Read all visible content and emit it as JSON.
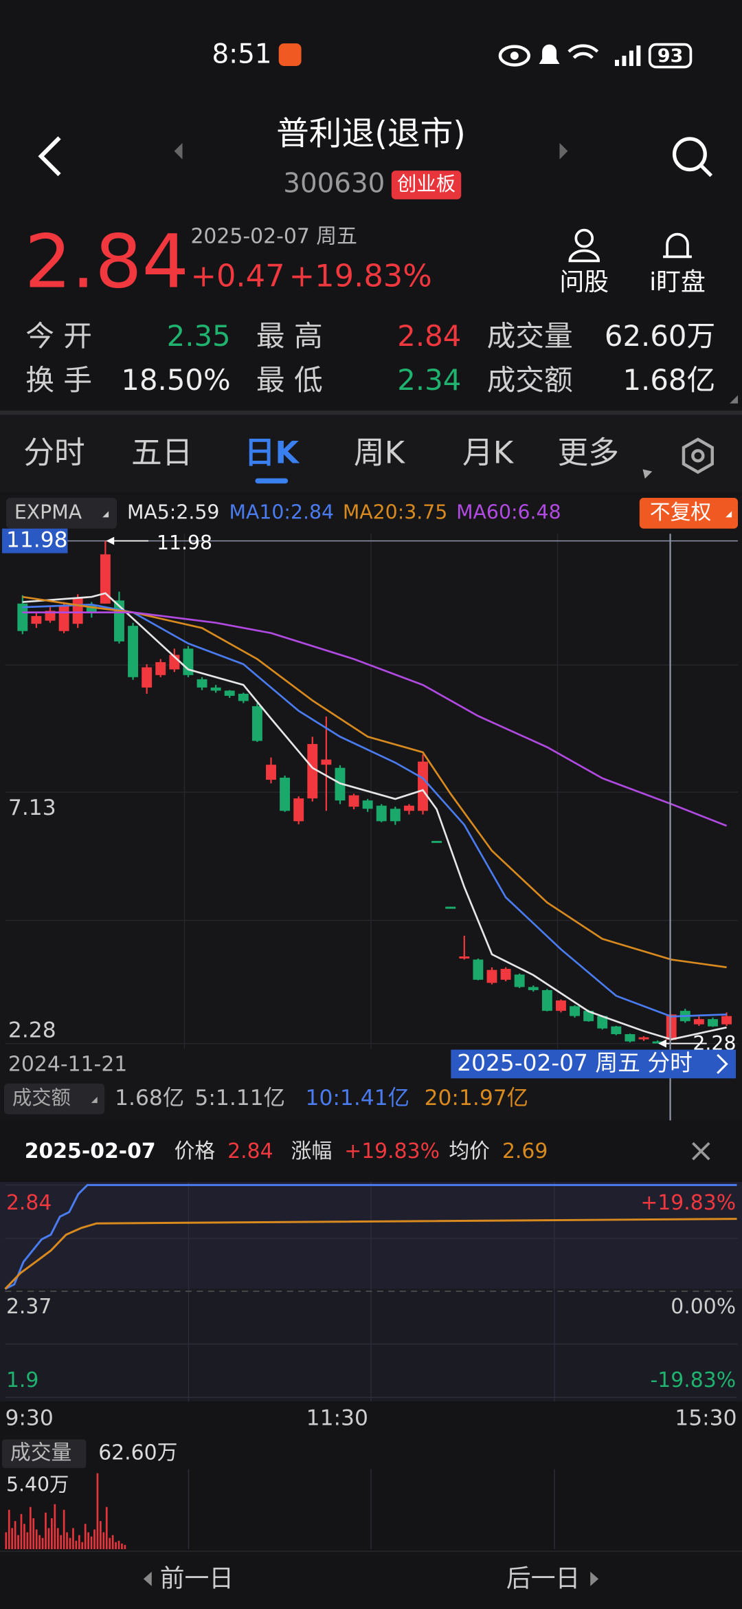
{
  "status": {
    "time": "8:51",
    "battery": "93"
  },
  "header": {
    "title": "普利退(退市)",
    "code": "300630",
    "board": "创业板"
  },
  "quote": {
    "price": "2.84",
    "date": "2025-02-07 周五",
    "change": "+0.47",
    "pct": "+19.83%",
    "buttons": [
      "问股",
      "i盯盘"
    ]
  },
  "stats": [
    {
      "label": "今 开",
      "value": "2.35",
      "color": "#1fb36f"
    },
    {
      "label": "最 高",
      "value": "2.84",
      "color": "#f0383e"
    },
    {
      "label": "成交量",
      "value": "62.60万",
      "color": "#eeeeee"
    },
    {
      "label": "换 手",
      "value": "18.50%",
      "color": "#eeeeee"
    },
    {
      "label": "最 低",
      "value": "2.34",
      "color": "#1fb36f"
    },
    {
      "label": "成交额",
      "value": "1.68亿",
      "color": "#eeeeee"
    }
  ],
  "tabs": [
    "分时",
    "五日",
    "日K",
    "周K",
    "月K",
    "更多"
  ],
  "kline": {
    "indicator": "EXPMA",
    "ma_labels": [
      {
        "text": "MA5:2.59",
        "color": "#e6e6e6"
      },
      {
        "text": "MA10:2.84",
        "color": "#4a7cf0"
      },
      {
        "text": "MA20:3.75",
        "color": "#d98a1f"
      },
      {
        "text": "MA60:6.48",
        "color": "#b04ae0"
      }
    ],
    "adjust": "不复权",
    "ylim": [
      2.28,
      11.98
    ],
    "yticks": [
      11.98,
      7.13,
      2.28
    ],
    "max_label": "11.98",
    "min_label": "2.28",
    "start_date": "2024-11-21",
    "selected_label": "2025-02-07 周五 分时",
    "up_color": "#f0383e",
    "down_color": "#1aa96b",
    "candles": [
      {
        "o": 10.77,
        "h": 10.93,
        "l": 10.18,
        "c": 10.24
      },
      {
        "o": 10.38,
        "h": 10.6,
        "l": 10.3,
        "c": 10.53
      },
      {
        "o": 10.44,
        "h": 10.7,
        "l": 10.4,
        "c": 10.63
      },
      {
        "o": 10.24,
        "h": 10.8,
        "l": 10.2,
        "c": 10.73
      },
      {
        "o": 10.38,
        "h": 10.95,
        "l": 10.3,
        "c": 10.89
      },
      {
        "o": 10.73,
        "h": 10.8,
        "l": 10.5,
        "c": 10.59
      },
      {
        "o": 10.77,
        "h": 11.98,
        "l": 10.77,
        "c": 11.72
      },
      {
        "o": 10.83,
        "h": 11.0,
        "l": 10.0,
        "c": 10.04
      },
      {
        "o": 10.34,
        "h": 10.4,
        "l": 9.3,
        "c": 9.35
      },
      {
        "o": 9.15,
        "h": 9.6,
        "l": 9.03,
        "c": 9.54
      },
      {
        "o": 9.39,
        "h": 9.7,
        "l": 9.35,
        "c": 9.64
      },
      {
        "o": 9.5,
        "h": 9.9,
        "l": 9.45,
        "c": 9.78
      },
      {
        "o": 9.9,
        "h": 9.95,
        "l": 9.35,
        "c": 9.39
      },
      {
        "o": 9.31,
        "h": 9.35,
        "l": 9.1,
        "c": 9.15
      },
      {
        "o": 9.15,
        "h": 9.2,
        "l": 9.05,
        "c": 9.09
      },
      {
        "o": 9.09,
        "h": 9.1,
        "l": 8.95,
        "c": 8.99
      },
      {
        "o": 9.03,
        "h": 9.05,
        "l": 8.85,
        "c": 8.89
      },
      {
        "o": 8.79,
        "h": 8.85,
        "l": 8.1,
        "c": 8.12
      },
      {
        "o": 7.37,
        "h": 7.8,
        "l": 7.3,
        "c": 7.66
      },
      {
        "o": 7.41,
        "h": 7.45,
        "l": 6.75,
        "c": 6.77
      },
      {
        "o": 6.57,
        "h": 7.05,
        "l": 6.51,
        "c": 7.01
      },
      {
        "o": 7.01,
        "h": 8.2,
        "l": 6.95,
        "c": 8.06
      },
      {
        "o": 7.66,
        "h": 8.59,
        "l": 6.77,
        "c": 7.76
      },
      {
        "o": 7.6,
        "h": 7.65,
        "l": 6.9,
        "c": 6.97
      },
      {
        "o": 6.85,
        "h": 7.1,
        "l": 6.8,
        "c": 7.07
      },
      {
        "o": 6.97,
        "h": 7.0,
        "l": 6.75,
        "c": 6.81
      },
      {
        "o": 6.87,
        "h": 6.9,
        "l": 6.55,
        "c": 6.57
      },
      {
        "o": 6.81,
        "h": 6.85,
        "l": 6.5,
        "c": 6.57
      },
      {
        "o": 6.77,
        "h": 6.9,
        "l": 6.7,
        "c": 6.87
      },
      {
        "o": 6.77,
        "h": 7.86,
        "l": 6.7,
        "c": 7.72
      },
      {
        "o": 6.19,
        "h": 6.19,
        "l": 6.18,
        "c": 6.18
      },
      {
        "o": 4.92,
        "h": 4.92,
        "l": 4.91,
        "c": 4.91
      },
      {
        "o": 3.92,
        "h": 4.36,
        "l": 3.9,
        "c": 3.96
      },
      {
        "o": 3.9,
        "h": 3.92,
        "l": 3.5,
        "c": 3.51
      },
      {
        "o": 3.45,
        "h": 3.75,
        "l": 3.42,
        "c": 3.7
      },
      {
        "o": 3.51,
        "h": 3.75,
        "l": 3.48,
        "c": 3.72
      },
      {
        "o": 3.61,
        "h": 3.63,
        "l": 3.35,
        "c": 3.37
      },
      {
        "o": 3.37,
        "h": 3.4,
        "l": 3.28,
        "c": 3.31
      },
      {
        "o": 3.31,
        "h": 3.33,
        "l": 2.9,
        "c": 2.91
      },
      {
        "o": 2.91,
        "h": 3.13,
        "l": 2.88,
        "c": 3.11
      },
      {
        "o": 3.0,
        "h": 3.02,
        "l": 2.78,
        "c": 2.81
      },
      {
        "o": 2.91,
        "h": 2.93,
        "l": 2.7,
        "c": 2.71
      },
      {
        "o": 2.81,
        "h": 2.82,
        "l": 2.55,
        "c": 2.57
      },
      {
        "o": 2.61,
        "h": 2.62,
        "l": 2.44,
        "c": 2.46
      },
      {
        "o": 2.46,
        "h": 2.47,
        "l": 2.3,
        "c": 2.32
      },
      {
        "o": 2.36,
        "h": 2.42,
        "l": 2.33,
        "c": 2.4
      },
      {
        "o": 2.32,
        "h": 2.34,
        "l": 2.28,
        "c": 2.29
      },
      {
        "o": 2.35,
        "h": 2.84,
        "l": 2.34,
        "c": 2.84
      },
      {
        "o": 2.91,
        "h": 2.95,
        "l": 2.68,
        "c": 2.71
      },
      {
        "o": 2.65,
        "h": 2.8,
        "l": 2.62,
        "c": 2.75
      },
      {
        "o": 2.75,
        "h": 2.78,
        "l": 2.6,
        "c": 2.61
      },
      {
        "o": 2.65,
        "h": 2.88,
        "l": 2.62,
        "c": 2.81
      }
    ],
    "lines": [
      {
        "color": "#e6e6e6",
        "x": [
          0,
          5,
          6,
          12,
          16,
          18,
          21,
          23,
          27,
          29,
          30,
          32,
          34,
          37,
          41,
          45,
          47,
          51
        ],
        "values": [
          10.8,
          10.9,
          10.97,
          9.5,
          9.2,
          8.55,
          7.6,
          7.3,
          7.0,
          7.17,
          6.8,
          5.3,
          4.0,
          3.6,
          2.9,
          2.52,
          2.36,
          2.59
        ]
      },
      {
        "color": "#4a7cf0",
        "x": [
          0,
          5,
          8,
          12,
          16,
          20,
          23,
          27,
          29,
          32,
          35,
          39,
          43,
          47,
          51
        ],
        "values": [
          10.7,
          10.75,
          10.6,
          10.0,
          9.6,
          8.7,
          8.2,
          7.7,
          7.4,
          6.5,
          5.1,
          4.1,
          3.2,
          2.8,
          2.84
        ]
      },
      {
        "color": "#d98a1f",
        "x": [
          0,
          5,
          8,
          13,
          17,
          21,
          25,
          29,
          31,
          34,
          38,
          42,
          47,
          51
        ],
        "values": [
          10.9,
          10.7,
          10.6,
          10.3,
          9.7,
          8.9,
          8.2,
          7.9,
          7.1,
          6.0,
          5.0,
          4.3,
          3.9,
          3.75
        ]
      },
      {
        "color": "#b04ae0",
        "x": [
          0,
          5,
          8,
          14,
          18,
          24,
          29,
          33,
          38,
          42,
          47,
          51
        ],
        "values": [
          10.6,
          10.6,
          10.6,
          10.4,
          10.2,
          9.7,
          9.2,
          8.6,
          8.0,
          7.4,
          6.9,
          6.48
        ]
      }
    ]
  },
  "turnover": {
    "label": "成交额",
    "items": [
      {
        "text": "1.68亿",
        "color": "#bbbbbb"
      },
      {
        "text": "5:1.11亿",
        "color": "#bbbbbb"
      },
      {
        "text": "10:1.41亿",
        "color": "#4a7cf0"
      },
      {
        "text": "20:1.97亿",
        "color": "#d98a1f"
      }
    ]
  },
  "intraday": {
    "date": "2025-02-07",
    "price_label": "价格",
    "price": "2.84",
    "pct_label": "涨幅",
    "pct": "+19.83%",
    "avg_label": "均价",
    "avg": "2.69",
    "ylim": [
      1.9,
      2.84
    ],
    "yticks": [
      2.84,
      2.37,
      1.9
    ],
    "pct_ticks": [
      "+19.83%",
      "0.00%",
      "-19.83%"
    ],
    "xlim": [
      0,
      240
    ],
    "xlabels": [
      "9:30",
      "11:30",
      "15:30"
    ],
    "price_line": {
      "color": "#4a7cf0",
      "x": [
        0,
        3,
        6,
        9,
        12,
        15,
        18,
        21,
        24,
        27,
        30,
        240
      ],
      "values": [
        2.38,
        2.4,
        2.5,
        2.55,
        2.6,
        2.62,
        2.7,
        2.72,
        2.8,
        2.84,
        2.84,
        2.84
      ]
    },
    "avg_line": {
      "color": "#d98a1f",
      "x": [
        0,
        5,
        10,
        15,
        20,
        25,
        30,
        240
      ],
      "values": [
        2.38,
        2.45,
        2.5,
        2.55,
        2.62,
        2.65,
        2.67,
        2.69
      ]
    },
    "volume_label": "成交量",
    "volume_total": "62.60万",
    "volume_max_label": "5.40万",
    "vlim": [
      0,
      5.4
    ],
    "volume_color": "#e8353b",
    "volumes": [
      1.2,
      2.8,
      1.5,
      2.0,
      1.0,
      2.5,
      1.8,
      1.2,
      3.0,
      2.2,
      1.4,
      1.0,
      0.8,
      2.6,
      1.5,
      2.2,
      3.2,
      1.5,
      1.0,
      2.8,
      1.2,
      0.8,
      1.5,
      0.6,
      1.0,
      0.5,
      1.8,
      1.2,
      0.9,
      1.4,
      5.4,
      2.0,
      1.2,
      3.0,
      0.8,
      1.0,
      0.5,
      0.6,
      0.4,
      0.3
    ]
  },
  "footer": {
    "prev": "前一日",
    "next": "后一日"
  }
}
